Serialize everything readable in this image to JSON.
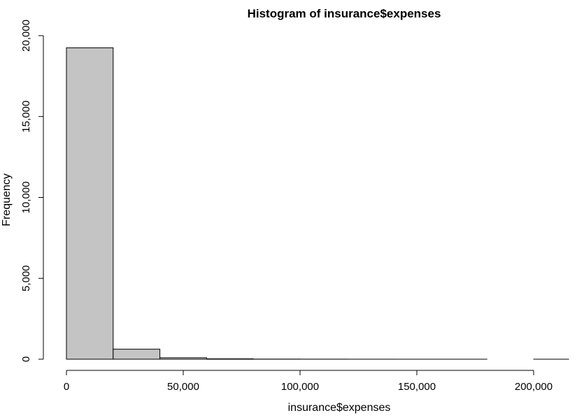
{
  "chart_data": {
    "type": "bar",
    "title": "Histogram of insurance$expenses",
    "xlabel": "insurance$expenses",
    "ylabel": "Frequency",
    "xlim": [
      0,
      210000
    ],
    "ylim": [
      0,
      20000
    ],
    "x_ticks": [
      {
        "value": 0,
        "label": "0"
      },
      {
        "value": 50000,
        "label": "50,000"
      },
      {
        "value": 100000,
        "label": "100,000"
      },
      {
        "value": 150000,
        "label": "150,000"
      },
      {
        "value": 200000,
        "label": "200,000"
      }
    ],
    "y_ticks": [
      {
        "value": 0,
        "label": "0"
      },
      {
        "value": 5000,
        "label": "5,000"
      },
      {
        "value": 10000,
        "label": "10,000"
      },
      {
        "value": 15000,
        "label": "15,000"
      },
      {
        "value": 20000,
        "label": "20,000"
      }
    ],
    "bins": [
      {
        "start": 0,
        "end": 20000,
        "count": 19250
      },
      {
        "start": 20000,
        "end": 40000,
        "count": 620
      },
      {
        "start": 40000,
        "end": 60000,
        "count": 90
      },
      {
        "start": 60000,
        "end": 80000,
        "count": 25
      },
      {
        "start": 80000,
        "end": 100000,
        "count": 8
      },
      {
        "start": 100000,
        "end": 120000,
        "count": 4
      },
      {
        "start": 120000,
        "end": 140000,
        "count": 2
      },
      {
        "start": 140000,
        "end": 160000,
        "count": 1
      },
      {
        "start": 160000,
        "end": 180000,
        "count": 1
      },
      {
        "start": 180000,
        "end": 200000,
        "count": 0
      },
      {
        "start": 200000,
        "end": 215000,
        "count": 1
      }
    ],
    "bar_color": "#c4c4c4",
    "grid": false,
    "legend": "none"
  }
}
